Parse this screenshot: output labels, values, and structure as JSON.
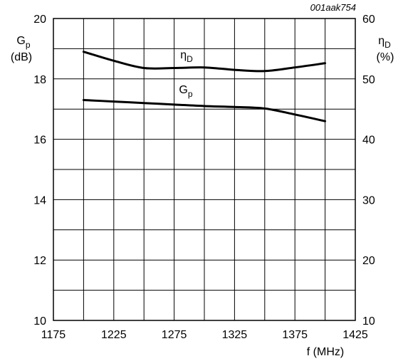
{
  "figure_code": "001aak754",
  "chart_data": {
    "type": "line",
    "x": [
      1200,
      1225,
      1250,
      1275,
      1300,
      1325,
      1350,
      1375,
      1400
    ],
    "xlim": [
      1175,
      1425
    ],
    "x_ticks": [
      "1175",
      "1225",
      "1275",
      "1325",
      "1375",
      "1425"
    ],
    "x_tick_values": [
      1175,
      1225,
      1275,
      1325,
      1375,
      1425
    ],
    "xlabel": "f (MHz)",
    "y_left": {
      "label_main": "G",
      "label_sub": "p",
      "unit": "(dB)",
      "ylim": [
        10,
        20
      ],
      "ticks": [
        "10",
        "12",
        "14",
        "16",
        "18",
        "20"
      ],
      "tick_values": [
        10,
        12,
        14,
        16,
        18,
        20
      ]
    },
    "y_right": {
      "label_main": "η",
      "label_sub": "D",
      "unit": "(%)",
      "ylim": [
        10,
        60
      ],
      "ticks": [
        "10",
        "20",
        "30",
        "40",
        "50",
        "60"
      ],
      "tick_values": [
        10,
        20,
        30,
        40,
        50,
        60
      ]
    },
    "grid": true,
    "series": [
      {
        "name_main": "η",
        "name_sub": "D",
        "axis": "right",
        "values": [
          54.5,
          53.0,
          51.8,
          51.8,
          51.9,
          51.5,
          51.3,
          51.9,
          52.6
        ]
      },
      {
        "name_main": "G",
        "name_sub": "p",
        "axis": "left",
        "values": [
          17.3,
          17.25,
          17.2,
          17.15,
          17.1,
          17.07,
          17.02,
          16.82,
          16.6
        ]
      }
    ]
  }
}
